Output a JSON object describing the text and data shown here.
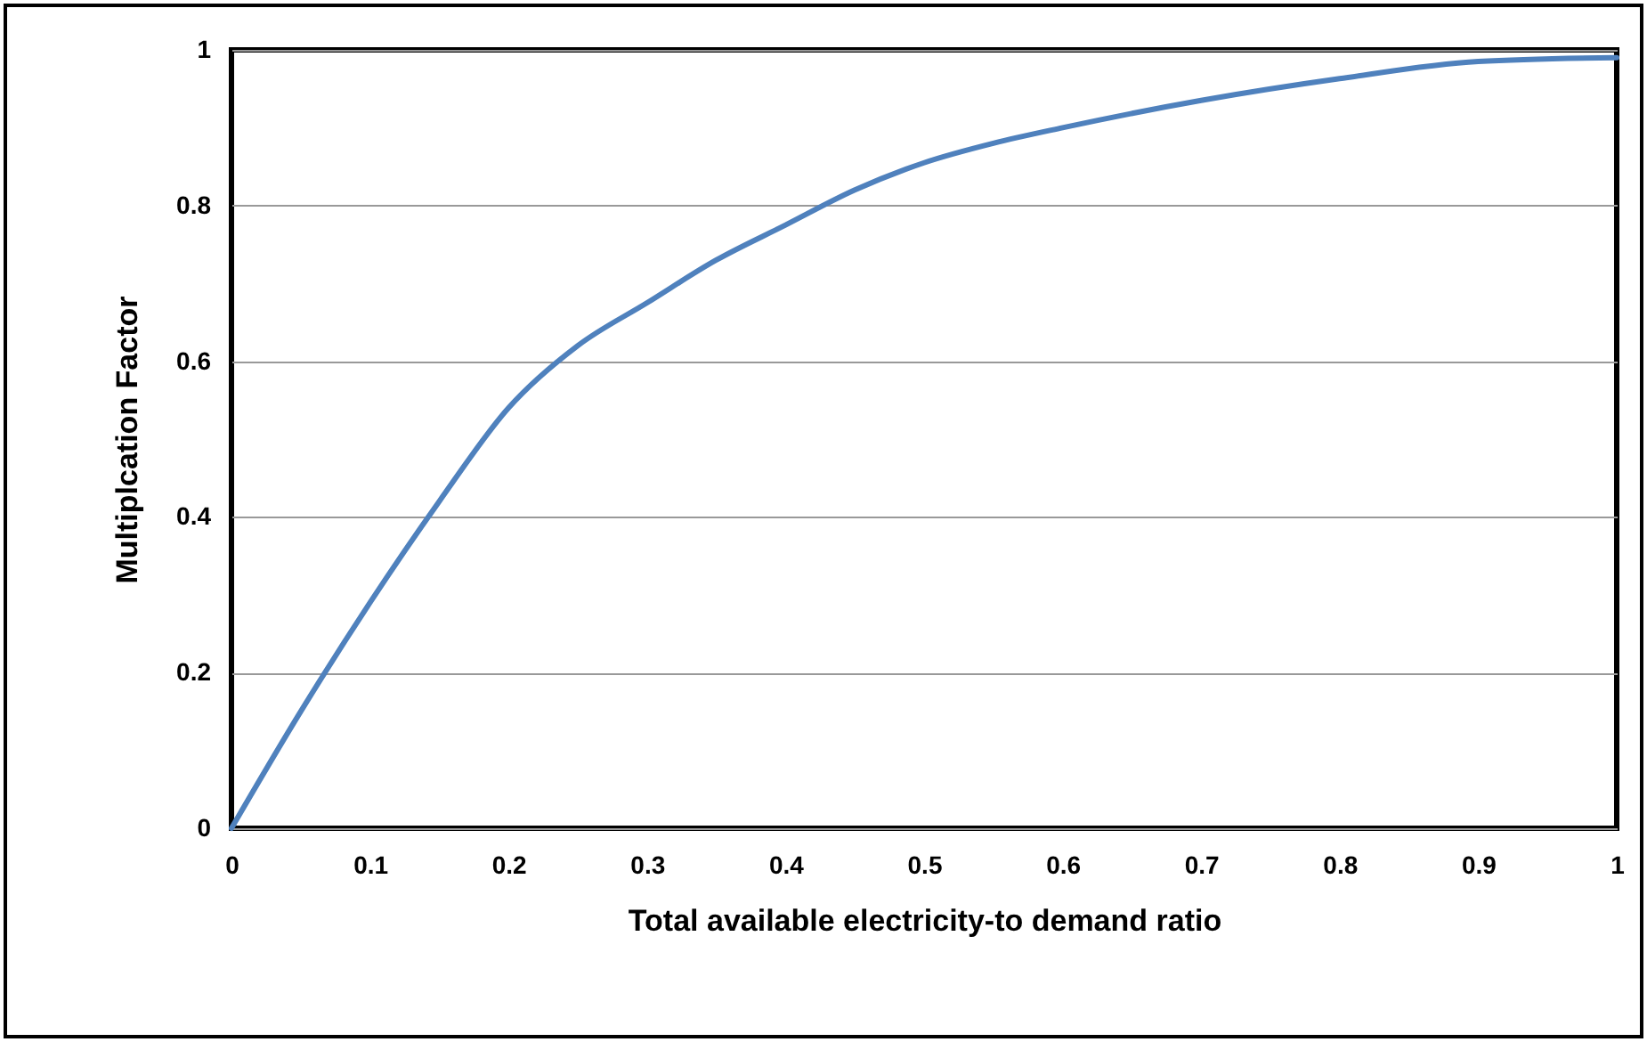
{
  "chart_data": {
    "type": "line",
    "xlabel": "Total available electricity-to demand ratio",
    "ylabel": "Multiplcation Factor",
    "x": [
      0,
      0.05,
      0.1,
      0.15,
      0.2,
      0.25,
      0.3,
      0.35,
      0.4,
      0.45,
      0.5,
      0.55,
      0.6,
      0.7,
      0.8,
      0.9,
      1
    ],
    "series": [
      {
        "color": "#4f81bd",
        "values": [
          0,
          0.15,
          0.29,
          0.42,
          0.54,
          0.62,
          0.675,
          0.73,
          0.775,
          0.82,
          0.855,
          0.88,
          0.9,
          0.935,
          0.963,
          0.985,
          0.99
        ]
      }
    ],
    "xlim": [
      0,
      1
    ],
    "ylim": [
      0,
      1
    ],
    "xticks": [
      0,
      0.1,
      0.2,
      0.3,
      0.4,
      0.5,
      0.6,
      0.7,
      0.8,
      0.9,
      1
    ],
    "yticks": [
      0,
      0.2,
      0.4,
      0.6,
      0.8,
      1
    ],
    "grid": "y",
    "legend": false,
    "marker": "none",
    "line_style": "solid"
  }
}
